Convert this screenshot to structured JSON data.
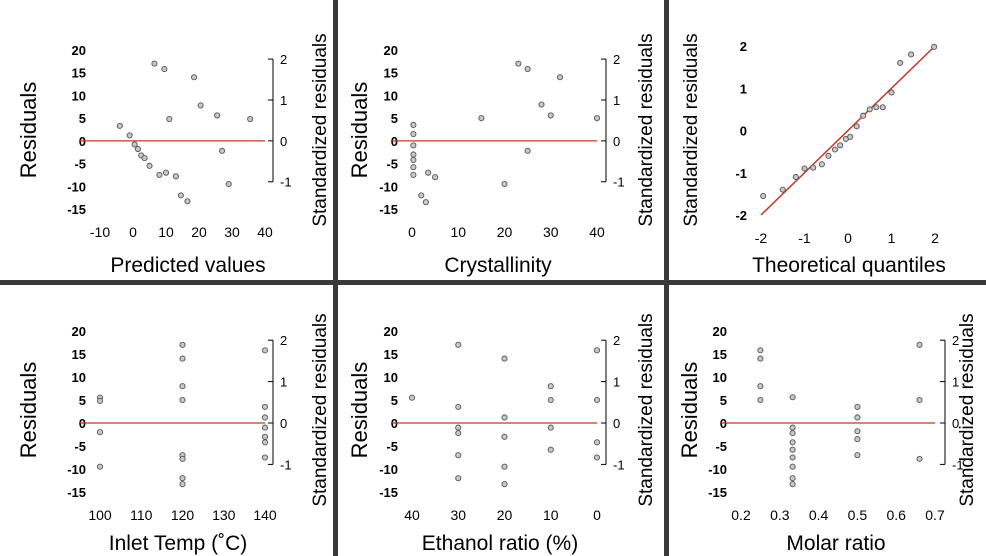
{
  "colors": {
    "refline": "#c0392b",
    "point_fill": "#c8c8c8",
    "point_stroke": "#555555",
    "separator": "#3a3a3a",
    "axis": "#000000"
  },
  "chart_data": [
    {
      "type": "scatter",
      "xlabel": "Predicted values",
      "ylabel": "Residuals",
      "y2label": "Standardized residuals",
      "xlim": [
        -10,
        40
      ],
      "ylim": [
        -15,
        20
      ],
      "xticks": [
        -10,
        0,
        10,
        20,
        30,
        40
      ],
      "yticks": [
        -15,
        -10,
        -5,
        0,
        5,
        10,
        15,
        20
      ],
      "y2ticks": [
        -1,
        0,
        1,
        2
      ],
      "y2_per_y": 0.1111,
      "refline": {
        "kind": "horizontal",
        "y": 0
      },
      "points": [
        {
          "x": -4,
          "y": 3.3
        },
        {
          "x": -1,
          "y": 1.2
        },
        {
          "x": 0.5,
          "y": -0.8
        },
        {
          "x": 1.5,
          "y": -1.8
        },
        {
          "x": 2.5,
          "y": -3.2
        },
        {
          "x": 3.5,
          "y": -3.8
        },
        {
          "x": 5,
          "y": -5.5
        },
        {
          "x": 6.5,
          "y": 17
        },
        {
          "x": 8,
          "y": -7.5
        },
        {
          "x": 9.5,
          "y": 15.8
        },
        {
          "x": 10,
          "y": -7
        },
        {
          "x": 11,
          "y": 4.8
        },
        {
          "x": 13,
          "y": -7.8
        },
        {
          "x": 14.5,
          "y": -12
        },
        {
          "x": 16.5,
          "y": -13.3
        },
        {
          "x": 18.5,
          "y": 14
        },
        {
          "x": 20.5,
          "y": 7.8
        },
        {
          "x": 25.5,
          "y": 5.6
        },
        {
          "x": 27,
          "y": -2.2
        },
        {
          "x": 29,
          "y": -9.5
        },
        {
          "x": 35.5,
          "y": 4.8
        }
      ]
    },
    {
      "type": "scatter",
      "xlabel": "Crystallinity",
      "ylabel": "Residuals",
      "y2label": "Standardized residuals",
      "xlim": [
        0,
        40
      ],
      "ylim": [
        -15,
        20
      ],
      "xticks": [
        0,
        10,
        20,
        30,
        40
      ],
      "yticks": [
        -15,
        -10,
        -5,
        0,
        5,
        10,
        15,
        20
      ],
      "y2ticks": [
        -1,
        0,
        1,
        2
      ],
      "y2_per_y": 0.1111,
      "refline": {
        "kind": "horizontal",
        "y": 0
      },
      "points": [
        {
          "x": 0.3,
          "y": 3.5
        },
        {
          "x": 0.3,
          "y": 1.5
        },
        {
          "x": 0.3,
          "y": -1
        },
        {
          "x": 0.3,
          "y": -3
        },
        {
          "x": 0.3,
          "y": -4.2
        },
        {
          "x": 0.3,
          "y": -5.8
        },
        {
          "x": 0.3,
          "y": -7.5
        },
        {
          "x": 2,
          "y": -12
        },
        {
          "x": 3,
          "y": -13.5
        },
        {
          "x": 3.5,
          "y": -7
        },
        {
          "x": 5,
          "y": -8
        },
        {
          "x": 15,
          "y": 5
        },
        {
          "x": 20,
          "y": -9.5
        },
        {
          "x": 23,
          "y": 17
        },
        {
          "x": 25,
          "y": 15.8
        },
        {
          "x": 25,
          "y": -2.2
        },
        {
          "x": 28,
          "y": 8
        },
        {
          "x": 30,
          "y": 5.6
        },
        {
          "x": 32,
          "y": 14
        },
        {
          "x": 40,
          "y": 5
        }
      ]
    },
    {
      "type": "scatter",
      "xlabel": "Theoretical quantiles",
      "ylabel": "Standardized residuals",
      "xlim": [
        -2,
        2
      ],
      "ylim": [
        -2,
        2
      ],
      "xticks": [
        -2,
        -1,
        0,
        1,
        2
      ],
      "yticks": [
        -2,
        -1,
        0,
        1,
        2
      ],
      "refline": {
        "kind": "diagonal",
        "from": [
          -2,
          -2
        ],
        "to": [
          2,
          2
        ]
      },
      "points": [
        {
          "x": -1.95,
          "y": -1.55
        },
        {
          "x": -1.5,
          "y": -1.4
        },
        {
          "x": -1.2,
          "y": -1.1
        },
        {
          "x": -1.0,
          "y": -0.9
        },
        {
          "x": -0.8,
          "y": -0.88
        },
        {
          "x": -0.6,
          "y": -0.8
        },
        {
          "x": -0.45,
          "y": -0.6
        },
        {
          "x": -0.3,
          "y": -0.45
        },
        {
          "x": -0.18,
          "y": -0.35
        },
        {
          "x": -0.05,
          "y": -0.2
        },
        {
          "x": 0.05,
          "y": -0.15
        },
        {
          "x": 0.2,
          "y": 0.1
        },
        {
          "x": 0.35,
          "y": 0.35
        },
        {
          "x": 0.5,
          "y": 0.5
        },
        {
          "x": 0.65,
          "y": 0.55
        },
        {
          "x": 0.8,
          "y": 0.55
        },
        {
          "x": 1.0,
          "y": 0.9
        },
        {
          "x": 1.2,
          "y": 1.6
        },
        {
          "x": 1.45,
          "y": 1.8
        },
        {
          "x": 1.98,
          "y": 1.98
        }
      ]
    },
    {
      "type": "scatter",
      "xlabel": "Inlet Temp (˚C)",
      "ylabel": "Residuals",
      "y2label": "Standardized residuals",
      "xlim": [
        100,
        140
      ],
      "ylim": [
        -15,
        20
      ],
      "xticks": [
        100,
        110,
        120,
        130,
        140
      ],
      "yticks": [
        -15,
        -10,
        -5,
        0,
        5,
        10,
        15,
        20
      ],
      "y2ticks": [
        -1,
        0,
        1,
        2
      ],
      "y2_per_y": 0.1111,
      "refline": {
        "kind": "horizontal",
        "y": 0
      },
      "points": [
        {
          "x": 100,
          "y": 5.5
        },
        {
          "x": 100,
          "y": 4.8
        },
        {
          "x": 100,
          "y": -2
        },
        {
          "x": 100,
          "y": -9.5
        },
        {
          "x": 120,
          "y": 17
        },
        {
          "x": 120,
          "y": 14
        },
        {
          "x": 120,
          "y": 8
        },
        {
          "x": 120,
          "y": 5
        },
        {
          "x": 120,
          "y": -7
        },
        {
          "x": 120,
          "y": -7.8
        },
        {
          "x": 120,
          "y": -12
        },
        {
          "x": 120,
          "y": -13.3
        },
        {
          "x": 140,
          "y": 15.8
        },
        {
          "x": 140,
          "y": 3.5
        },
        {
          "x": 140,
          "y": 1.2
        },
        {
          "x": 140,
          "y": -1
        },
        {
          "x": 140,
          "y": -3
        },
        {
          "x": 140,
          "y": -4.2
        },
        {
          "x": 140,
          "y": -7.5
        }
      ]
    },
    {
      "type": "scatter",
      "xlabel": "Ethanol ratio (%)",
      "ylabel": "Residuals",
      "y2label": "Standardized residuals",
      "xlim": [
        40,
        0
      ],
      "ylim": [
        -15,
        20
      ],
      "xticks": [
        40,
        30,
        20,
        10,
        0
      ],
      "yticks": [
        -15,
        -10,
        -5,
        0,
        5,
        10,
        15,
        20
      ],
      "y2ticks": [
        -1,
        0,
        1,
        2
      ],
      "y2_per_y": 0.1111,
      "refline": {
        "kind": "horizontal",
        "y": 0
      },
      "points": [
        {
          "x": 40,
          "y": 5.5
        },
        {
          "x": 30,
          "y": 17
        },
        {
          "x": 30,
          "y": 3.5
        },
        {
          "x": 30,
          "y": -1
        },
        {
          "x": 30,
          "y": -2.2
        },
        {
          "x": 30,
          "y": -7
        },
        {
          "x": 30,
          "y": -12
        },
        {
          "x": 20,
          "y": 14
        },
        {
          "x": 20,
          "y": 1.2
        },
        {
          "x": 20,
          "y": -3
        },
        {
          "x": 20,
          "y": -9.5
        },
        {
          "x": 20,
          "y": -13.3
        },
        {
          "x": 10,
          "y": 8
        },
        {
          "x": 10,
          "y": 5
        },
        {
          "x": 10,
          "y": -1
        },
        {
          "x": 10,
          "y": -5.8
        },
        {
          "x": 0,
          "y": 15.8
        },
        {
          "x": 0,
          "y": 5
        },
        {
          "x": 0,
          "y": -4.2
        },
        {
          "x": 0,
          "y": -7.5
        }
      ]
    },
    {
      "type": "scatter",
      "xlabel": "Molar ratio",
      "ylabel": "Residuals",
      "y2label": "Standardized residuals",
      "xlim": [
        0.2,
        0.7
      ],
      "ylim": [
        -15,
        20
      ],
      "xticks": [
        0.2,
        0.3,
        0.4,
        0.5,
        0.6,
        0.7
      ],
      "yticks": [
        -15,
        -10,
        -5,
        0,
        5,
        10,
        15,
        20
      ],
      "y2ticks": [
        -1,
        0,
        1,
        2
      ],
      "y2_per_y": 0.1111,
      "refline": {
        "kind": "horizontal",
        "y": 0
      },
      "points": [
        {
          "x": 0.25,
          "y": 15.8
        },
        {
          "x": 0.25,
          "y": 14
        },
        {
          "x": 0.25,
          "y": 8
        },
        {
          "x": 0.25,
          "y": 5
        },
        {
          "x": 0.333,
          "y": 5.6
        },
        {
          "x": 0.333,
          "y": -1
        },
        {
          "x": 0.333,
          "y": -2.2
        },
        {
          "x": 0.333,
          "y": -4.2
        },
        {
          "x": 0.333,
          "y": -5.8
        },
        {
          "x": 0.333,
          "y": -7.5
        },
        {
          "x": 0.333,
          "y": -9.5
        },
        {
          "x": 0.333,
          "y": -12
        },
        {
          "x": 0.333,
          "y": -13.3
        },
        {
          "x": 0.5,
          "y": 3.5
        },
        {
          "x": 0.5,
          "y": 1.2
        },
        {
          "x": 0.5,
          "y": -1.8
        },
        {
          "x": 0.5,
          "y": -3.5
        },
        {
          "x": 0.5,
          "y": -7
        },
        {
          "x": 0.66,
          "y": 17
        },
        {
          "x": 0.66,
          "y": 5
        },
        {
          "x": 0.66,
          "y": -7.8
        }
      ]
    }
  ]
}
